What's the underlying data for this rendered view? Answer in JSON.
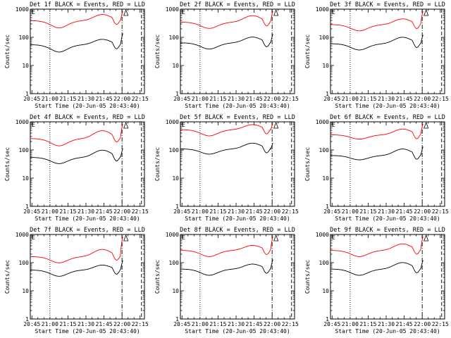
{
  "chart_data": [
    {
      "type": "line",
      "title": "Det 1f BLACK = Events, RED = LLD",
      "xlabel": "Start Time (20-Jun-05 20:43:40)",
      "ylabel": "Counts/sec",
      "series": [
        {
          "name": "BLACK = Events",
          "color": "#000000",
          "base": 60,
          "dip": 0.55,
          "hump": 1.55,
          "end": 160
        },
        {
          "name": "RED = LLD",
          "color": "#ff0000",
          "base": 430,
          "dip": 0.55,
          "hump": 1.65,
          "end": 1000
        }
      ]
    },
    {
      "type": "line",
      "title": "Det 2f BLACK = Events, RED = LLD",
      "xlabel": "Start Time (20-Jun-05 20:43:40)",
      "ylabel": "Counts/sec",
      "series": [
        {
          "name": "BLACK = Events",
          "color": "#000000",
          "base": 70,
          "dip": 0.6,
          "hump": 1.6,
          "end": 150
        },
        {
          "name": "RED = LLD",
          "color": "#ff0000",
          "base": 380,
          "dip": 0.6,
          "hump": 1.7,
          "end": 1000
        }
      ]
    },
    {
      "type": "line",
      "title": "Det 3f BLACK = Events, RED = LLD",
      "xlabel": "Start Time (20-Jun-05 20:43:40)",
      "ylabel": "Counts/sec",
      "series": [
        {
          "name": "BLACK = Events",
          "color": "#000000",
          "base": 65,
          "dip": 0.6,
          "hump": 1.7,
          "end": 140
        },
        {
          "name": "RED = LLD",
          "color": "#ff0000",
          "base": 310,
          "dip": 0.6,
          "hump": 1.6,
          "end": 1000
        }
      ]
    },
    {
      "type": "line",
      "title": "Det 4f BLACK = Events, RED = LLD",
      "xlabel": "Start Time (20-Jun-05 20:43:40)",
      "ylabel": "Counts/sec",
      "series": [
        {
          "name": "BLACK = Events",
          "color": "#000000",
          "base": 60,
          "dip": 0.6,
          "hump": 1.8,
          "end": 130
        },
        {
          "name": "RED = LLD",
          "color": "#ff0000",
          "base": 280,
          "dip": 0.55,
          "hump": 1.9,
          "end": 1000
        }
      ]
    },
    {
      "type": "line",
      "title": "Det 5f BLACK = Events, RED = LLD",
      "xlabel": "Start Time (20-Jun-05 20:43:40)",
      "ylabel": "Counts/sec",
      "series": [
        {
          "name": "BLACK = Events",
          "color": "#000000",
          "base": 120,
          "dip": 0.65,
          "hump": 1.6,
          "end": 200
        },
        {
          "name": "RED = LLD",
          "color": "#ff0000",
          "base": 580,
          "dip": 0.6,
          "hump": 1.5,
          "end": 1000
        }
      ]
    },
    {
      "type": "line",
      "title": "Det 6f BLACK = Events, RED = LLD",
      "xlabel": "Start Time (20-Jun-05 20:43:40)",
      "ylabel": "Counts/sec",
      "series": [
        {
          "name": "BLACK = Events",
          "color": "#000000",
          "base": 70,
          "dip": 0.7,
          "hump": 1.7,
          "end": 150
        },
        {
          "name": "RED = LLD",
          "color": "#ff0000",
          "base": 380,
          "dip": 0.7,
          "hump": 1.6,
          "end": 1000
        }
      ]
    },
    {
      "type": "line",
      "title": "Det 7f BLACK = Events, RED = LLD",
      "xlabel": "Start Time (20-Jun-05 20:43:40)",
      "ylabel": "Counts/sec",
      "series": [
        {
          "name": "BLACK = Events",
          "color": "#000000",
          "base": 60,
          "dip": 0.6,
          "hump": 1.5,
          "end": 140
        },
        {
          "name": "RED = LLD",
          "color": "#ff0000",
          "base": 180,
          "dip": 0.6,
          "hump": 1.8,
          "end": 1000
        }
      ]
    },
    {
      "type": "line",
      "title": "Det 8f BLACK = Events, RED = LLD",
      "xlabel": "Start Time (20-Jun-05 20:43:40)",
      "ylabel": "Counts/sec",
      "series": [
        {
          "name": "BLACK = Events",
          "color": "#000000",
          "base": 65,
          "dip": 0.6,
          "hump": 1.5,
          "end": 150
        },
        {
          "name": "RED = LLD",
          "color": "#ff0000",
          "base": 300,
          "dip": 0.6,
          "hump": 1.5,
          "end": 1000
        }
      ]
    },
    {
      "type": "line",
      "title": "Det 9f BLACK = Events, RED = LLD",
      "xlabel": "Start Time (20-Jun-05 20:43:40)",
      "ylabel": "Counts/sec",
      "series": [
        {
          "name": "BLACK = Events",
          "color": "#000000",
          "base": 65,
          "dip": 0.6,
          "hump": 1.7,
          "end": 140
        },
        {
          "name": "RED = LLD",
          "color": "#ff0000",
          "base": 300,
          "dip": 0.6,
          "hump": 1.7,
          "end": 1000
        }
      ]
    }
  ],
  "axes": {
    "x_range_minutes": [
      0,
      95
    ],
    "x_ticks": [
      {
        "m": 1.33,
        "label": "20:45"
      },
      {
        "m": 16.33,
        "label": "21:00"
      },
      {
        "m": 31.33,
        "label": "21:15"
      },
      {
        "m": 46.33,
        "label": "21:30"
      },
      {
        "m": 61.33,
        "label": "21:45"
      },
      {
        "m": 76.33,
        "label": "22:00"
      },
      {
        "m": 91.33,
        "label": "22:15"
      }
    ],
    "y_range": [
      1,
      1000
    ],
    "y_ticks": [
      {
        "v": 1,
        "label": "1"
      },
      {
        "v": 10,
        "label": "10"
      },
      {
        "v": 100,
        "label": "100"
      },
      {
        "v": 1000,
        "label": "1000"
      }
    ],
    "dotted_marker_minute": 16.33,
    "dashdot_marker_minute": 76.33,
    "dashed_marker_minute": 92.5,
    "flag_label": "E"
  }
}
